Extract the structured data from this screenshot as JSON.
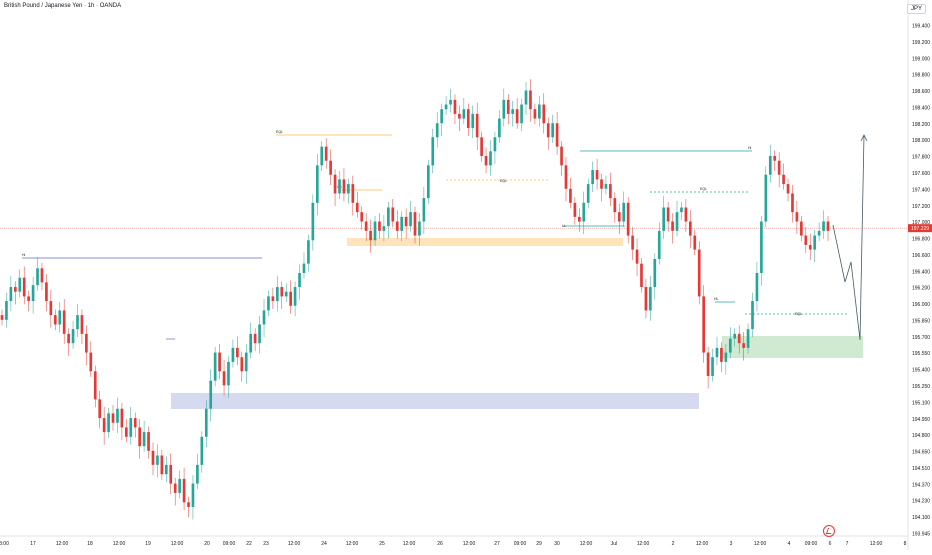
{
  "header": {
    "title": "British Pound / Japanese Yen · 1h · OANDA",
    "currency": "JPY"
  },
  "chart_data": {
    "type": "candlestick",
    "ylim": [
      193.94,
      199.56
    ],
    "grid": false,
    "price_axis_ticks": [
      "199.400",
      "199.200",
      "199.000",
      "198.800",
      "198.600",
      "198.400",
      "198.200",
      "198.000",
      "197.800",
      "197.600",
      "197.400",
      "197.200",
      "197.000",
      "196.800",
      "196.600",
      "196.400",
      "196.200",
      "196.000",
      "195.850",
      "195.700",
      "195.550",
      "195.400",
      "195.250",
      "195.100",
      "194.950",
      "194.800",
      "194.650",
      "194.510",
      "194.370",
      "194.230",
      "194.100",
      "193.945"
    ],
    "time_axis_ticks": [
      "3:00",
      "17",
      "12:00",
      "18",
      "12:00",
      "19",
      "12:00",
      "20",
      "09:00",
      "22",
      "23",
      "12:00",
      "24",
      "12:00",
      "25",
      "12:00",
      "26",
      "12:00",
      "27",
      "09:00",
      "29",
      "30",
      "12:00",
      "Jul",
      "12:00",
      "2",
      "12:00",
      "3",
      "12:00",
      "4",
      "09:00",
      "6",
      "7",
      "12:00",
      "8"
    ],
    "current_price": "197.229",
    "current_price_value": 197.229,
    "up_color": "#26a69a",
    "down_color": "#e53935",
    "candle_close_series": [
      196.25,
      196.45,
      196.6,
      196.55,
      196.7,
      196.5,
      196.45,
      196.62,
      196.8,
      196.65,
      196.45,
      196.3,
      196.2,
      196.35,
      196.1,
      196.0,
      196.15,
      196.3,
      196.1,
      195.9,
      195.7,
      195.4,
      195.2,
      195.05,
      195.25,
      195.15,
      195.3,
      195.1,
      195.0,
      195.2,
      195.1,
      194.9,
      195.05,
      194.85,
      194.7,
      194.8,
      194.6,
      194.7,
      194.5,
      194.4,
      194.55,
      194.3,
      194.25,
      194.5,
      194.7,
      195.0,
      195.3,
      195.6,
      195.9,
      195.7,
      195.55,
      195.8,
      195.95,
      195.85,
      195.7,
      195.9,
      196.1,
      196.0,
      196.2,
      196.35,
      196.5,
      196.45,
      196.6,
      196.5,
      196.55,
      196.4,
      196.6,
      196.75,
      196.85,
      197.1,
      197.5,
      197.9,
      198.1,
      197.95,
      197.8,
      197.6,
      197.75,
      197.6,
      197.7,
      197.5,
      197.4,
      197.3,
      197.2,
      197.1,
      197.3,
      197.2,
      197.25,
      197.45,
      197.3,
      197.2,
      197.35,
      197.25,
      197.4,
      197.15,
      197.3,
      197.55,
      197.9,
      198.2,
      198.35,
      198.5,
      198.55,
      198.6,
      198.45,
      198.4,
      198.5,
      198.3,
      198.45,
      198.2,
      198.0,
      197.9,
      198.05,
      198.2,
      198.4,
      198.6,
      198.45,
      198.5,
      198.35,
      198.55,
      198.7,
      198.5,
      198.4,
      198.55,
      198.35,
      198.2,
      198.35,
      198.1,
      197.9,
      197.65,
      197.5,
      197.35,
      197.3,
      197.5,
      197.7,
      197.85,
      197.75,
      197.65,
      197.7,
      197.55,
      197.4,
      197.3,
      197.5,
      197.15,
      197.0,
      196.85,
      196.6,
      196.35,
      196.6,
      196.9,
      197.2,
      197.45,
      197.3,
      197.2,
      197.4,
      197.45,
      197.3,
      197.15,
      197.0,
      196.5,
      195.9,
      195.65,
      195.85,
      195.95,
      195.8,
      195.9,
      196.05,
      196.1,
      196.0,
      195.95,
      196.15,
      196.45,
      196.75,
      197.3,
      197.8,
      198.0,
      197.95,
      197.8,
      197.7,
      197.6,
      197.4,
      197.3,
      197.15,
      197.05,
      197.0,
      197.15,
      197.2,
      197.3,
      197.2
    ],
    "annotations": {
      "label_a": "Hi",
      "label_b": "EQL",
      "label_c": "LH",
      "label_d": "EQL",
      "label_e": "Hi",
      "label_f": "EQL",
      "label_g": "LL",
      "label_h": "HL",
      "label_i": "EQL"
    }
  }
}
